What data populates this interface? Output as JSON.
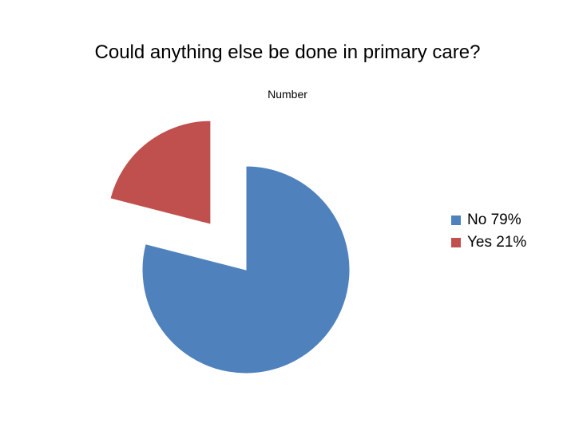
{
  "chart_data": {
    "type": "pie",
    "title": "Could anything else be done in primary care?",
    "subtitle": "Number",
    "slices": [
      {
        "label": "No 79%",
        "value": 79,
        "color": "#4F81BD",
        "exploded": false
      },
      {
        "label": "Yes 21%",
        "value": 21,
        "color": "#C0504D",
        "exploded": true
      }
    ],
    "legend_position": "right"
  }
}
